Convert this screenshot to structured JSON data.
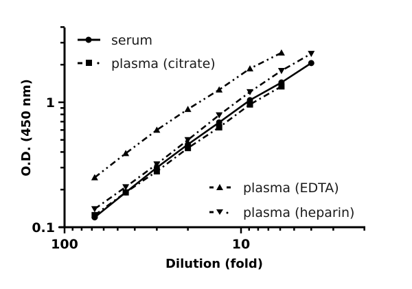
{
  "chart_data": {
    "type": "line",
    "title": "",
    "xlabel": "Dilution (fold)",
    "ylabel": "O.D. (450 nm)",
    "xscale": "log",
    "yscale": "log",
    "x_reversed": true,
    "xlim": [
      100,
      2
    ],
    "ylim": [
      0.1,
      4
    ],
    "x_ticks_major": [
      {
        "value": 100,
        "label": "100"
      },
      {
        "value": 10,
        "label": "10"
      }
    ],
    "y_ticks_major": [
      {
        "value": 0.1,
        "label": "0.1"
      },
      {
        "value": 1,
        "label": "1"
      }
    ],
    "grid": false,
    "legend_position": "split: top-left (serum, plasma citrate), bottom-right (plasma EDTA, plasma heparin)",
    "series": [
      {
        "name": "serum",
        "marker": "circle",
        "line": "solid",
        "x": [
          67.5,
          45,
          30,
          20,
          13.3,
          8.9,
          5.9,
          4.0
        ],
        "values": [
          0.12,
          0.19,
          0.3,
          0.46,
          0.69,
          1.04,
          1.44,
          2.06
        ]
      },
      {
        "name": "plasma (citrate)",
        "marker": "square",
        "line": "dash-dot",
        "x": [
          67.5,
          45,
          30,
          20,
          13.3,
          8.9,
          5.9
        ],
        "values": [
          0.125,
          0.19,
          0.28,
          0.43,
          0.63,
          0.96,
          1.34
        ]
      },
      {
        "name": "plasma (EDTA)",
        "marker": "triangle-up",
        "line": "dash-dot-dot",
        "x": [
          67.5,
          45,
          30,
          20,
          13.3,
          8.9,
          5.9
        ],
        "values": [
          0.25,
          0.39,
          0.6,
          0.88,
          1.26,
          1.86,
          2.49
        ]
      },
      {
        "name": "plasma (heparin)",
        "marker": "triangle-down",
        "line": "dotted-dash",
        "x": [
          67.5,
          45,
          30,
          20,
          13.3,
          8.9,
          5.9,
          4.0
        ],
        "values": [
          0.14,
          0.21,
          0.32,
          0.5,
          0.79,
          1.21,
          1.79,
          2.45
        ]
      }
    ]
  },
  "axes": {
    "x_title": "Dilution (fold)",
    "y_title": "O.D. (450 nm)",
    "x_tick_100": "100",
    "x_tick_10": "10",
    "y_tick_1": "1",
    "y_tick_01": "0.1"
  },
  "legend": {
    "serum": "serum",
    "citrate": "plasma (citrate)",
    "edta": "plasma (EDTA)",
    "heparin": "plasma (heparin)"
  }
}
